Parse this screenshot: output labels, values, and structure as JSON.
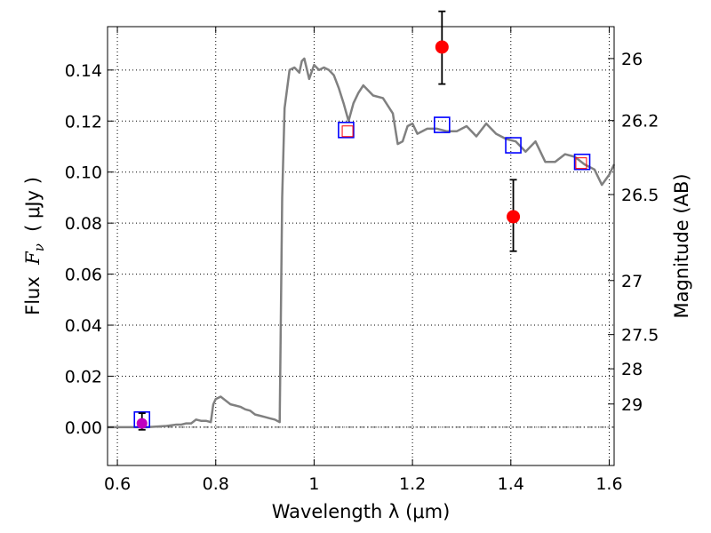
{
  "chart_data": {
    "type": "line",
    "xlabel": "Wavelength  λ (μm)",
    "ylabel_prefix": "Flux  ",
    "ylabel_symbol": "F",
    "ylabel_subscript": "ν",
    "ylabel_unit": "  ( μJy )",
    "ylabel_right": "Magnitude (AB)",
    "xlim": [
      0.58,
      1.61
    ],
    "ylim": [
      -0.015,
      0.157
    ],
    "grid": true,
    "x_ticks": [
      0.6,
      0.8,
      1.0,
      1.2,
      1.4,
      1.6
    ],
    "x_tick_labels": [
      "0.6",
      "0.8",
      "1",
      "1.2",
      "1.4",
      "1.6"
    ],
    "y_ticks": [
      0.0,
      0.02,
      0.04,
      0.06,
      0.08,
      0.1,
      0.12,
      0.14
    ],
    "y_tick_labels": [
      "0.00",
      "0.02",
      "0.04",
      "0.06",
      "0.08",
      "0.10",
      "0.12",
      "0.14"
    ],
    "right_ticks": [
      {
        "label": "26",
        "flux": 0.1445
      },
      {
        "label": "26.2",
        "flux": 0.1202
      },
      {
        "label": "26.5",
        "flux": 0.0912
      },
      {
        "label": "27",
        "flux": 0.0575
      },
      {
        "label": "27.5",
        "flux": 0.0363
      },
      {
        "label": "28",
        "flux": 0.0229
      },
      {
        "label": "29",
        "flux": 0.0091
      }
    ],
    "model_sed": {
      "name": "model spectrum",
      "color": "#808080",
      "x": [
        0.58,
        0.62,
        0.66,
        0.7,
        0.72,
        0.73,
        0.74,
        0.75,
        0.76,
        0.77,
        0.78,
        0.79,
        0.795,
        0.8,
        0.81,
        0.82,
        0.83,
        0.84,
        0.85,
        0.86,
        0.87,
        0.88,
        0.89,
        0.9,
        0.91,
        0.92,
        0.93,
        0.935,
        0.94,
        0.95,
        0.96,
        0.97,
        0.975,
        0.98,
        0.99,
        1.0,
        1.01,
        1.02,
        1.03,
        1.04,
        1.05,
        1.06,
        1.07,
        1.08,
        1.09,
        1.1,
        1.12,
        1.14,
        1.16,
        1.17,
        1.18,
        1.19,
        1.2,
        1.21,
        1.23,
        1.25,
        1.27,
        1.29,
        1.31,
        1.33,
        1.35,
        1.37,
        1.39,
        1.41,
        1.43,
        1.45,
        1.47,
        1.49,
        1.51,
        1.53,
        1.55,
        1.57,
        1.585,
        1.6,
        1.61
      ],
      "y": [
        0.0,
        0.0,
        0.0,
        0.0005,
        0.001,
        0.001,
        0.0015,
        0.0015,
        0.003,
        0.0025,
        0.0025,
        0.002,
        0.009,
        0.011,
        0.012,
        0.0105,
        0.009,
        0.0085,
        0.008,
        0.007,
        0.0065,
        0.005,
        0.0045,
        0.004,
        0.0035,
        0.003,
        0.002,
        0.09,
        0.125,
        0.14,
        0.141,
        0.139,
        0.1435,
        0.1445,
        0.1365,
        0.142,
        0.14,
        0.141,
        0.14,
        0.138,
        0.133,
        0.127,
        0.12,
        0.127,
        0.131,
        0.134,
        0.13,
        0.129,
        0.123,
        0.111,
        0.112,
        0.118,
        0.119,
        0.115,
        0.117,
        0.117,
        0.116,
        0.116,
        0.118,
        0.114,
        0.119,
        0.115,
        0.113,
        0.112,
        0.108,
        0.112,
        0.104,
        0.104,
        0.107,
        0.106,
        0.103,
        0.101,
        0.095,
        0.099,
        0.103
      ]
    },
    "observed": {
      "name": "observed photometry",
      "color": "#ff0000",
      "points": [
        {
          "x": 0.65,
          "y": 0.0015,
          "err_low": 0.0025,
          "err_high": 0.004
        },
        {
          "x": 1.26,
          "y": 0.149,
          "err_low": 0.0145,
          "err_high": 0.014
        },
        {
          "x": 1.405,
          "y": 0.0825,
          "err_low": 0.0135,
          "err_high": 0.0145
        }
      ]
    },
    "model_band_fluxes": {
      "name": "model band fluxes",
      "color": "#0000ff",
      "points": [
        {
          "x": 0.65,
          "y": 0.003
        },
        {
          "x": 1.065,
          "y": 0.1165
        },
        {
          "x": 1.26,
          "y": 0.1185
        },
        {
          "x": 1.405,
          "y": 0.1105
        },
        {
          "x": 1.545,
          "y": 0.104
        }
      ]
    },
    "observed_band_fluxes": {
      "name": "observed band fluxes",
      "color": "#ff0000",
      "points": [
        {
          "x": 1.068,
          "y": 0.116
        },
        {
          "x": 1.543,
          "y": 0.1035
        }
      ]
    },
    "faint_marker": {
      "x": 0.65,
      "y": 0.0015,
      "color": "#c000c0"
    }
  }
}
